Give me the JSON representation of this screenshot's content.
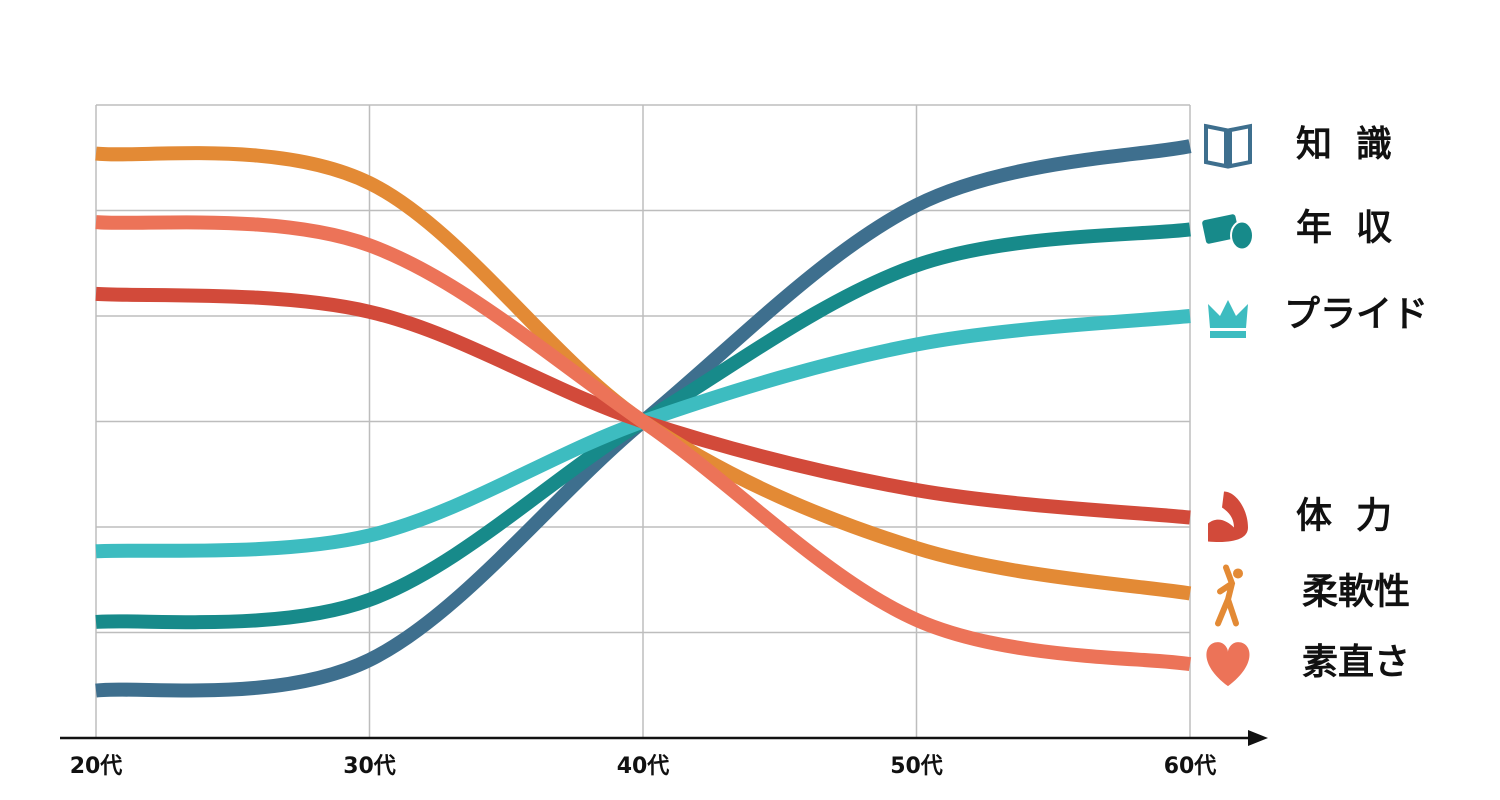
{
  "chart_data": {
    "type": "line",
    "categories": [
      "20代",
      "30代",
      "40代",
      "50代",
      "60代"
    ],
    "ylim": [
      0,
      6
    ],
    "yticks": [
      0,
      1,
      2,
      3,
      4,
      5,
      6
    ],
    "grid": true,
    "series": [
      {
        "name": "知識",
        "color": "#3e6f8e",
        "values": [
          0.45,
          0.74,
          3,
          5.05,
          5.61
        ]
      },
      {
        "name": "年収",
        "color": "#178a8a",
        "values": [
          1.1,
          1.31,
          3,
          4.48,
          4.82
        ]
      },
      {
        "name": "プライド",
        "color": "#3dbcc0",
        "values": [
          1.77,
          1.92,
          3,
          3.73,
          4.0
        ]
      },
      {
        "name": "体力",
        "color": "#d24a3a",
        "values": [
          4.21,
          4.04,
          3,
          2.35,
          2.09
        ]
      },
      {
        "name": "柔軟性",
        "color": "#e38a35",
        "values": [
          5.54,
          5.26,
          3,
          1.8,
          1.37
        ]
      },
      {
        "name": "素直さ",
        "color": "#ec7358",
        "values": [
          4.89,
          4.67,
          3,
          1.12,
          0.7
        ]
      }
    ]
  }
}
